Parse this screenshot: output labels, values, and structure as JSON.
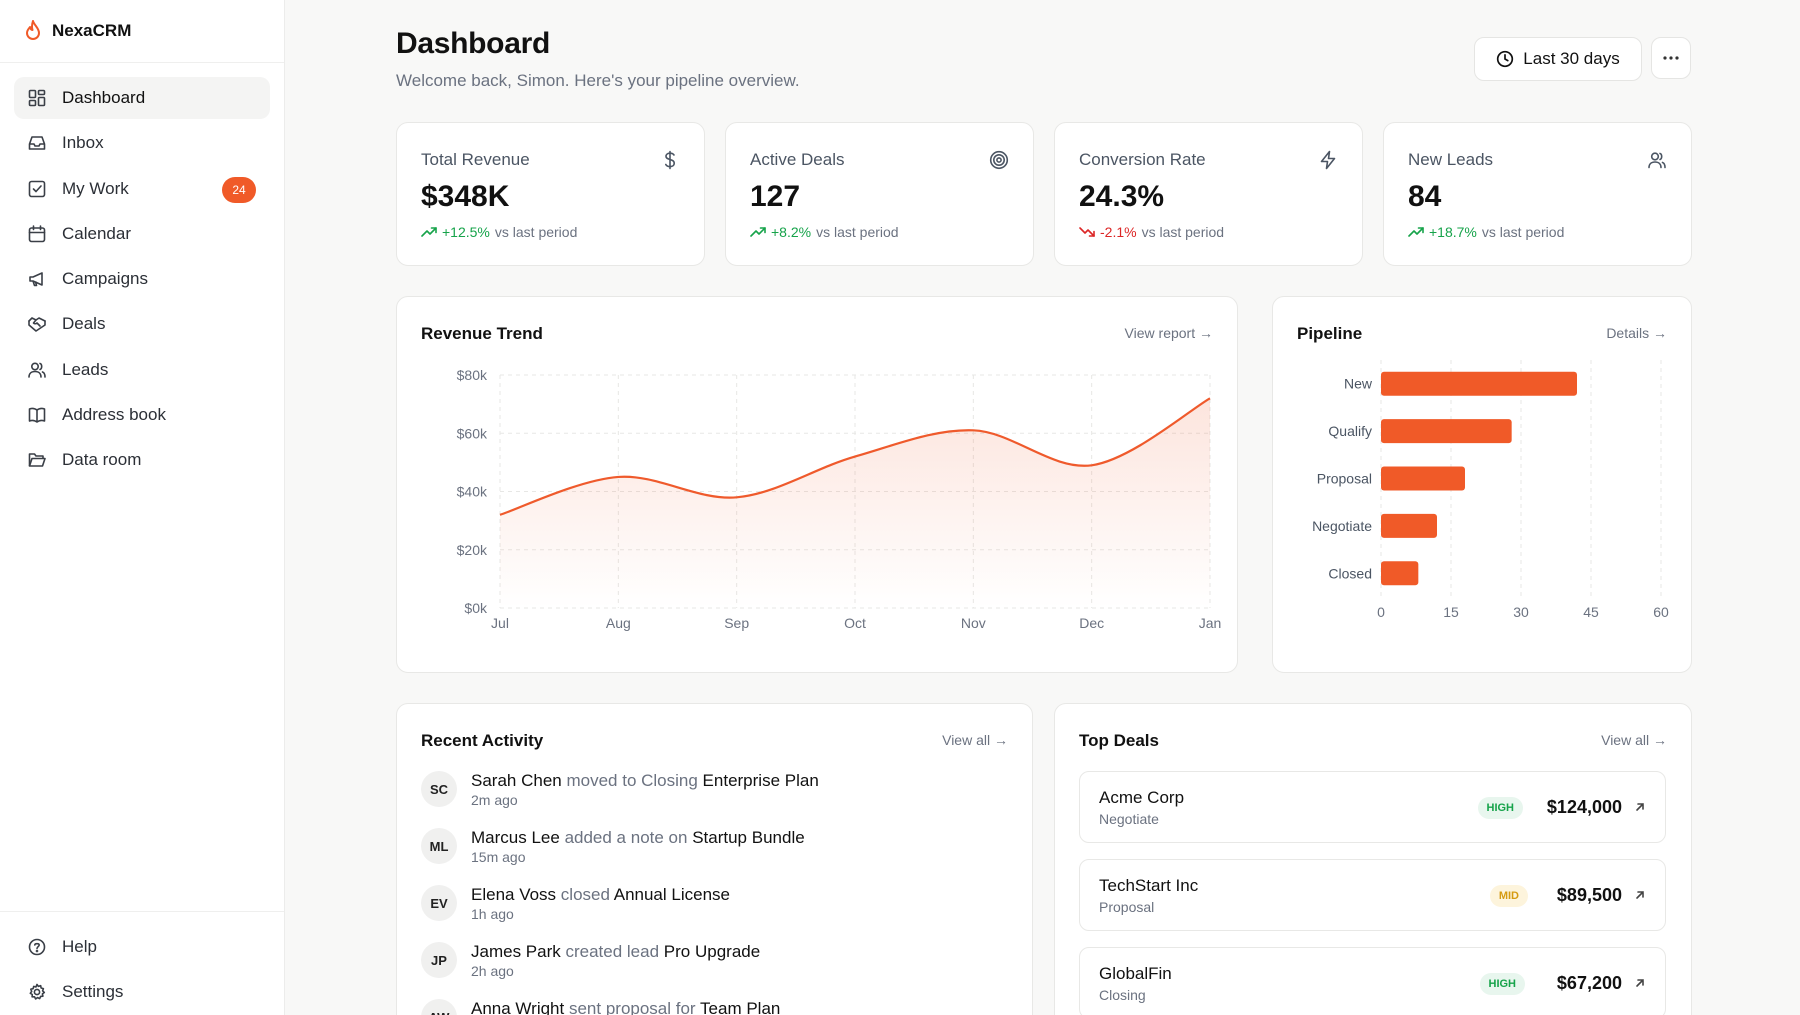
{
  "app": {
    "name": "NexaCRM"
  },
  "sidebar": {
    "items": [
      {
        "label": "Dashboard",
        "icon": "dashboard-icon",
        "active": true
      },
      {
        "label": "Inbox",
        "icon": "inbox-icon"
      },
      {
        "label": "My Work",
        "icon": "checkbox-icon",
        "badge": "24"
      },
      {
        "label": "Calendar",
        "icon": "calendar-icon"
      },
      {
        "label": "Campaigns",
        "icon": "megaphone-icon"
      },
      {
        "label": "Deals",
        "icon": "handshake-icon"
      },
      {
        "label": "Leads",
        "icon": "users-icon"
      },
      {
        "label": "Address book",
        "icon": "book-icon"
      },
      {
        "label": "Data room",
        "icon": "folder-icon"
      }
    ],
    "bottom": [
      {
        "label": "Help",
        "icon": "help-icon"
      },
      {
        "label": "Settings",
        "icon": "gear-icon"
      }
    ]
  },
  "header": {
    "title": "Dashboard",
    "subtitle": "Welcome back, Simon. Here's your pipeline overview.",
    "range_label": "Last 30 days"
  },
  "stats": [
    {
      "label": "Total Revenue",
      "value": "$348K",
      "delta": "+12.5%",
      "delta_dir": "up",
      "suffix": "vs last period",
      "icon": "dollar-icon"
    },
    {
      "label": "Active Deals",
      "value": "127",
      "delta": "+8.2%",
      "delta_dir": "up",
      "suffix": "vs last period",
      "icon": "target-icon"
    },
    {
      "label": "Conversion Rate",
      "value": "24.3%",
      "delta": "-2.1%",
      "delta_dir": "down",
      "suffix": "vs last period",
      "icon": "bolt-icon"
    },
    {
      "label": "New Leads",
      "value": "84",
      "delta": "+18.7%",
      "delta_dir": "up",
      "suffix": "vs last period",
      "icon": "users-icon"
    }
  ],
  "revenue_card": {
    "title": "Revenue Trend",
    "link": "View report →"
  },
  "pipeline_card": {
    "title": "Pipeline",
    "link": "Details →"
  },
  "chart_data": [
    {
      "type": "area",
      "title": "Revenue Trend",
      "x": [
        "Jul",
        "Aug",
        "Sep",
        "Oct",
        "Nov",
        "Dec",
        "Jan"
      ],
      "series": [
        {
          "values": [
            32000,
            45000,
            38000,
            52000,
            61000,
            49000,
            72000
          ]
        }
      ],
      "y_ticks": [
        "$0k",
        "$20k",
        "$40k",
        "$60k",
        "$80k"
      ],
      "ylim": [
        0,
        80000
      ],
      "grid": true,
      "color": "#ef5a2c"
    },
    {
      "type": "bar",
      "orientation": "horizontal",
      "title": "Pipeline",
      "categories": [
        "New",
        "Qualify",
        "Proposal",
        "Negotiate",
        "Closed"
      ],
      "values": [
        42,
        28,
        18,
        12,
        8
      ],
      "x_ticks": [
        "0",
        "15",
        "30",
        "45",
        "60"
      ],
      "xlim": [
        0,
        60
      ],
      "grid": true,
      "color": "#f05a28"
    }
  ],
  "activity": {
    "title": "Recent Activity",
    "link": "View all →",
    "items": [
      {
        "initials": "SC",
        "actor": "Sarah Chen",
        "action": "moved to Closing",
        "target": "Enterprise Plan",
        "time": "2m ago"
      },
      {
        "initials": "ML",
        "actor": "Marcus Lee",
        "action": "added a note on",
        "target": "Startup Bundle",
        "time": "15m ago"
      },
      {
        "initials": "EV",
        "actor": "Elena Voss",
        "action": "closed",
        "target": "Annual License",
        "time": "1h ago"
      },
      {
        "initials": "JP",
        "actor": "James Park",
        "action": "created lead",
        "target": "Pro Upgrade",
        "time": "2h ago"
      },
      {
        "initials": "AW",
        "actor": "Anna Wright",
        "action": "sent proposal for",
        "target": "Team Plan",
        "time": ""
      }
    ]
  },
  "deals": {
    "title": "Top Deals",
    "link": "View all →",
    "items": [
      {
        "name": "Acme Corp",
        "stage": "Negotiate",
        "priority": "HIGH",
        "amount": "$124,000"
      },
      {
        "name": "TechStart Inc",
        "stage": "Proposal",
        "priority": "MID",
        "amount": "$89,500"
      },
      {
        "name": "GlobalFin",
        "stage": "Closing",
        "priority": "HIGH",
        "amount": "$67,200"
      }
    ]
  }
}
